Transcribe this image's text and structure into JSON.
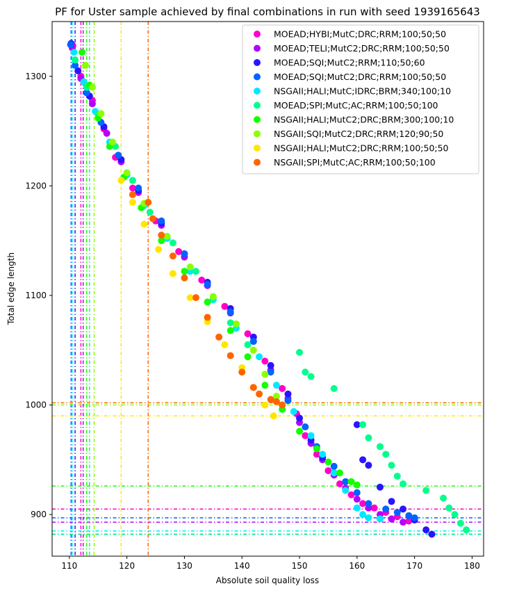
{
  "chart_data": {
    "type": "scatter",
    "title": "PF for Uster sample achieved by final combinations in run with seed 1939165643",
    "xlabel": "Absolute soil quality loss",
    "ylabel": "Total edge length",
    "xlim": [
      107,
      182
    ],
    "ylim": [
      862,
      1350
    ],
    "x_ticks": [
      110,
      120,
      130,
      140,
      150,
      160,
      170,
      180
    ],
    "y_ticks": [
      900,
      1000,
      1100,
      1200,
      1300
    ],
    "grid": false,
    "legend_position": "top-right",
    "series": [
      {
        "name": "MOEAD;HYBI;MutC;DRC;RRM;100;50;50",
        "color": "#ff00c8",
        "vline": 112.0,
        "hline": 905,
        "points": [
          [
            110.6,
            1328
          ],
          [
            112,
            1300
          ],
          [
            114,
            1278
          ],
          [
            116,
            1252
          ],
          [
            118,
            1226
          ],
          [
            121,
            1198
          ],
          [
            125,
            1168
          ],
          [
            129,
            1140
          ],
          [
            133,
            1114
          ],
          [
            137,
            1090
          ],
          [
            141,
            1065
          ],
          [
            144,
            1040
          ],
          [
            147,
            1015
          ],
          [
            149.5,
            992
          ],
          [
            151,
            972
          ],
          [
            153,
            955
          ],
          [
            155,
            940
          ],
          [
            157,
            928
          ],
          [
            159,
            918
          ],
          [
            161,
            910
          ],
          [
            163,
            906
          ],
          [
            165,
            902
          ],
          [
            167,
            898
          ],
          [
            169,
            894
          ]
        ]
      },
      {
        "name": "MOEAD;TELI;MutC2;DRC;RRM;100;50;50",
        "color": "#b400ff",
        "vline": 112.4,
        "hline": 893,
        "points": [
          [
            110.5,
            1326
          ],
          [
            112,
            1298
          ],
          [
            114,
            1275
          ],
          [
            116.5,
            1248
          ],
          [
            119,
            1222
          ],
          [
            122,
            1194
          ],
          [
            126,
            1164
          ],
          [
            130,
            1135
          ],
          [
            134,
            1109
          ],
          [
            138,
            1084
          ],
          [
            142,
            1058
          ],
          [
            145,
            1032
          ],
          [
            148,
            1006
          ],
          [
            150,
            984
          ],
          [
            152,
            965
          ],
          [
            154,
            950
          ],
          [
            156,
            936
          ],
          [
            158,
            924
          ],
          [
            160,
            914
          ],
          [
            162,
            906
          ],
          [
            164,
            900
          ],
          [
            166,
            896
          ],
          [
            168,
            893
          ]
        ]
      },
      {
        "name": "MOEAD;SQI;MutC2;RRM;110;50;60",
        "color": "#2a14ff",
        "vline": 111.0,
        "hline": 882,
        "points": [
          [
            110.3,
            1330
          ],
          [
            111.5,
            1305
          ],
          [
            113.5,
            1282
          ],
          [
            116,
            1254
          ],
          [
            119,
            1224
          ],
          [
            122,
            1196
          ],
          [
            126,
            1166
          ],
          [
            130,
            1138
          ],
          [
            134,
            1112
          ],
          [
            138,
            1088
          ],
          [
            142,
            1062
          ],
          [
            145,
            1036
          ],
          [
            148,
            1010
          ],
          [
            150,
            988
          ],
          [
            152,
            968
          ],
          [
            154,
            952
          ],
          [
            156,
            938
          ],
          [
            160,
            982
          ],
          [
            161,
            950
          ],
          [
            162,
            945
          ],
          [
            164,
            925
          ],
          [
            166,
            912
          ],
          [
            168,
            905
          ],
          [
            170,
            895
          ],
          [
            172,
            886
          ],
          [
            173,
            882
          ]
        ]
      },
      {
        "name": "MOEAD;SQI;MutC2;DRC;RRM;100;50;50",
        "color": "#0064ff",
        "vline": 110.3,
        "hline": 897,
        "points": [
          [
            110.2,
            1329
          ],
          [
            111,
            1310
          ],
          [
            113,
            1285
          ],
          [
            115.5,
            1258
          ],
          [
            118.5,
            1228
          ],
          [
            122,
            1198
          ],
          [
            126,
            1168
          ],
          [
            130,
            1138
          ],
          [
            134,
            1110
          ],
          [
            138,
            1085
          ],
          [
            142,
            1058
          ],
          [
            145,
            1030
          ],
          [
            148,
            1004
          ],
          [
            151,
            980
          ],
          [
            153,
            962
          ],
          [
            156,
            944
          ],
          [
            158,
            930
          ],
          [
            160,
            920
          ],
          [
            162,
            910
          ],
          [
            165,
            905
          ],
          [
            167,
            902
          ],
          [
            169,
            899
          ],
          [
            170,
            897
          ]
        ]
      },
      {
        "name": "NSGAII;HALI;MutC;IDRC;BRM;340;100;10",
        "color": "#00e8ff",
        "vline": 110.5,
        "hline": 885,
        "points": [
          [
            110.8,
            1322
          ],
          [
            112.5,
            1295
          ],
          [
            114.5,
            1268
          ],
          [
            117,
            1240
          ],
          [
            120,
            1210
          ],
          [
            123,
            1182
          ],
          [
            127,
            1152
          ],
          [
            131,
            1122
          ],
          [
            135,
            1096
          ],
          [
            139,
            1070
          ],
          [
            143,
            1044
          ],
          [
            146,
            1018
          ],
          [
            149,
            994
          ],
          [
            152,
            972
          ],
          [
            154,
            955
          ],
          [
            156,
            938
          ],
          [
            158,
            922
          ],
          [
            160,
            906
          ],
          [
            161,
            900
          ],
          [
            162,
            897
          ],
          [
            164,
            896
          ]
        ]
      },
      {
        "name": "MOEAD;SPI;MutC;AC;RRM;100;50;100",
        "color": "#00ff8c",
        "vline": 113.5,
        "hline": 882,
        "points": [
          [
            111,
            1315
          ],
          [
            113,
            1290
          ],
          [
            115,
            1265
          ],
          [
            118,
            1236
          ],
          [
            121,
            1205
          ],
          [
            124,
            1176
          ],
          [
            128,
            1148
          ],
          [
            132,
            1122
          ],
          [
            135,
            1098
          ],
          [
            138,
            1075
          ],
          [
            141,
            1055
          ],
          [
            150,
            1048
          ],
          [
            151,
            1030
          ],
          [
            152,
            1026
          ],
          [
            156,
            1015
          ],
          [
            161,
            982
          ],
          [
            162,
            970
          ],
          [
            164,
            962
          ],
          [
            165,
            955
          ],
          [
            166,
            945
          ],
          [
            167,
            935
          ],
          [
            168,
            928
          ],
          [
            172,
            922
          ],
          [
            175,
            915
          ],
          [
            176,
            906
          ],
          [
            177,
            900
          ],
          [
            178,
            892
          ],
          [
            179,
            886
          ]
        ]
      },
      {
        "name": "NSGAII;HALI;MutC2;DRC;BRM;300;100;10",
        "color": "#14ff00",
        "vline": 113.0,
        "hline": 926,
        "points": [
          [
            112.2,
            1322
          ],
          [
            113.5,
            1292
          ],
          [
            115,
            1262
          ],
          [
            117,
            1236
          ],
          [
            119.5,
            1208
          ],
          [
            122.5,
            1180
          ],
          [
            126,
            1150
          ],
          [
            130,
            1122
          ],
          [
            134,
            1094
          ],
          [
            138,
            1068
          ],
          [
            141,
            1044
          ],
          [
            144,
            1018
          ],
          [
            147,
            996
          ],
          [
            150,
            976
          ],
          [
            153,
            960
          ],
          [
            155,
            948
          ],
          [
            157,
            938
          ],
          [
            159,
            930
          ],
          [
            160,
            927
          ]
        ]
      },
      {
        "name": "NSGAII;SQI;MutC2;DRC;RRM;120;90;50",
        "color": "#8cff00",
        "vline": 114.3,
        "hline": 1000,
        "points": [
          [
            112.8,
            1310
          ],
          [
            114,
            1290
          ],
          [
            115.5,
            1266
          ],
          [
            117.5,
            1240
          ],
          [
            120,
            1212
          ],
          [
            123,
            1184
          ],
          [
            127,
            1154
          ],
          [
            131,
            1126
          ],
          [
            135,
            1099
          ],
          [
            139,
            1074
          ],
          [
            142,
            1050
          ],
          [
            144,
            1028
          ],
          [
            146,
            1008
          ],
          [
            147,
            1000
          ]
        ]
      },
      {
        "name": "NSGAII;HALI;MutC2;DRC;RRM;100;50;50",
        "color": "#ffe600",
        "vline": 119.0,
        "hline": 990,
        "points": [
          [
            119,
            1205
          ],
          [
            121,
            1185
          ],
          [
            123,
            1165
          ],
          [
            125.5,
            1142
          ],
          [
            128,
            1120
          ],
          [
            131,
            1098
          ],
          [
            134,
            1076
          ],
          [
            137,
            1055
          ],
          [
            140,
            1034
          ],
          [
            142,
            1016
          ],
          [
            144,
            1000
          ],
          [
            145.5,
            990
          ]
        ]
      },
      {
        "name": "NSGAII;SPI;MutC;AC;RRM;100;50;100",
        "color": "#ff6400",
        "vline": 123.7,
        "hline": 1002,
        "points": [
          [
            121,
            1192
          ],
          [
            123.7,
            1185
          ],
          [
            124.5,
            1170
          ],
          [
            126,
            1155
          ],
          [
            128,
            1136
          ],
          [
            130,
            1116
          ],
          [
            132,
            1098
          ],
          [
            134,
            1080
          ],
          [
            136,
            1062
          ],
          [
            138,
            1045
          ],
          [
            140,
            1030
          ],
          [
            142,
            1016
          ],
          [
            143,
            1010
          ],
          [
            145,
            1005
          ],
          [
            146,
            1003
          ],
          [
            147,
            1000
          ]
        ]
      }
    ]
  }
}
